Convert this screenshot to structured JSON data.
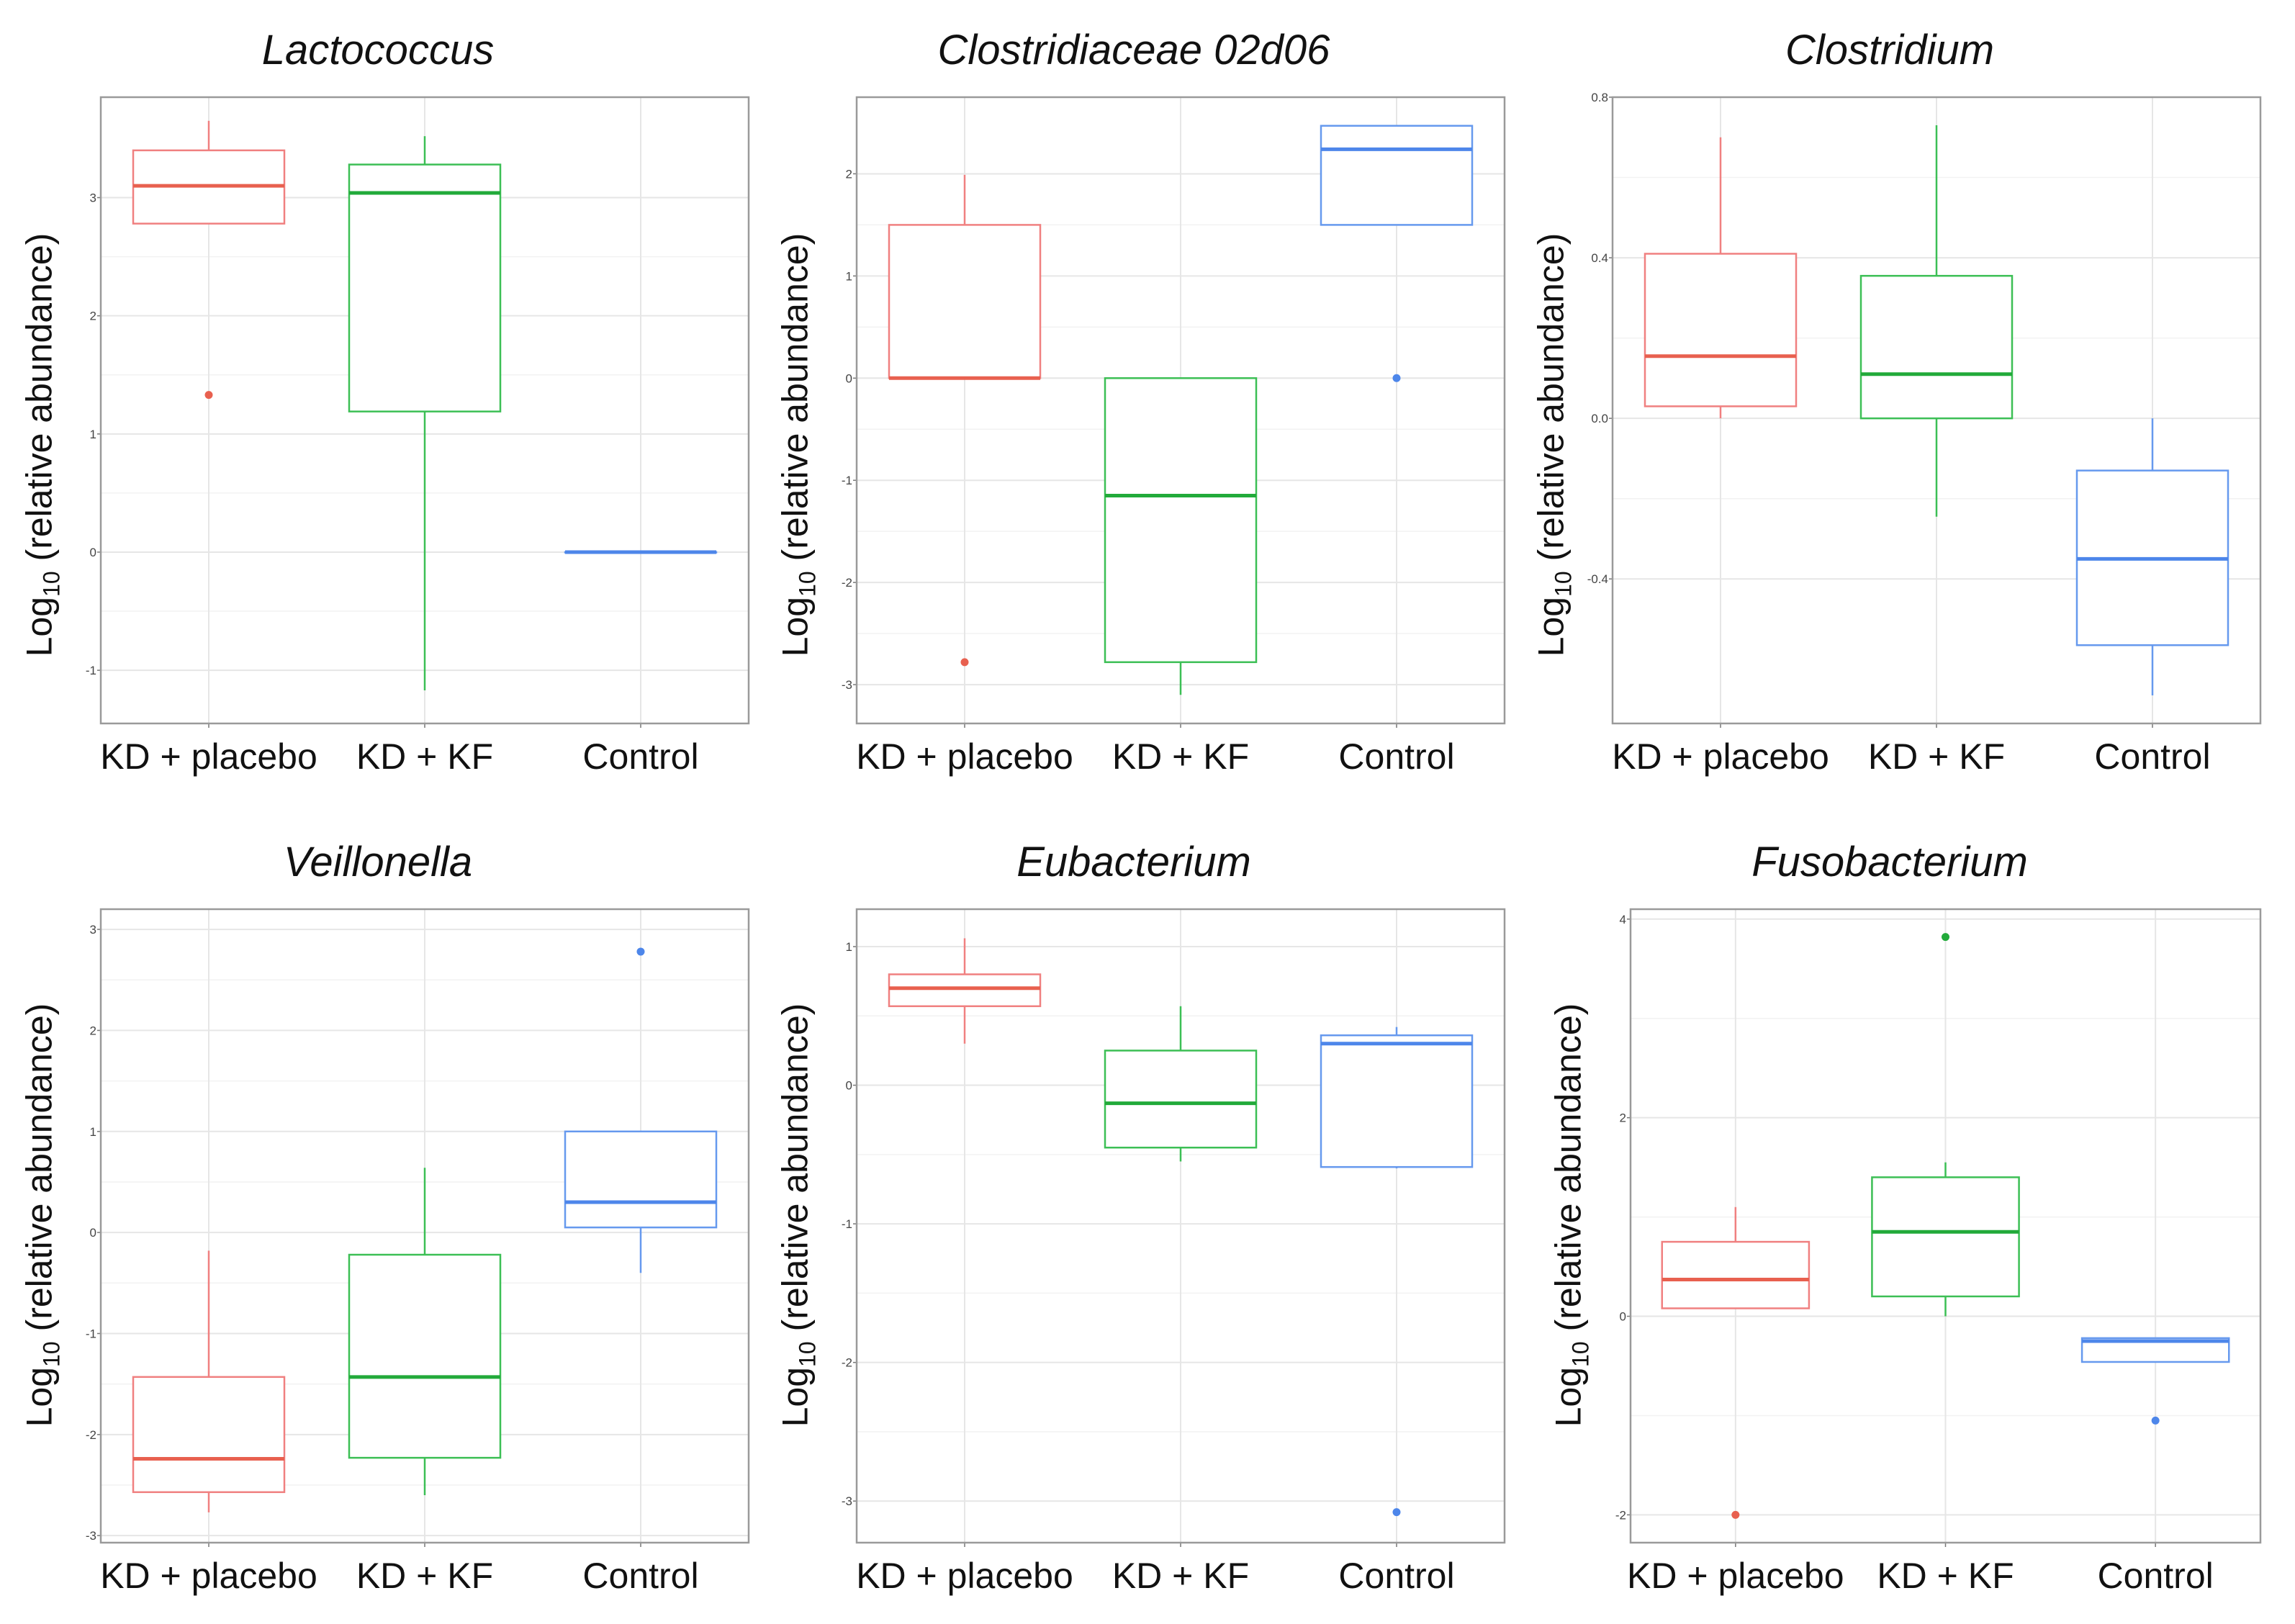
{
  "figure": {
    "ylabel_prefix": "Log",
    "ylabel_sub": "10",
    "ylabel_suffix": " (relative abundance)"
  },
  "colors": {
    "KD + placebo": "#f08080",
    "KD + KF": "#3cbf55",
    "Control": "#6699ee",
    "KD + placebo_median": "#e8604f",
    "KD + KF_median": "#22aa3a",
    "Control_median": "#4d86ea"
  },
  "chart_data": [
    {
      "type": "boxplot",
      "title": "Lactococcus",
      "categories": [
        "KD + placebo",
        "KD + KF",
        "Control"
      ],
      "ylim": [
        -1.45,
        3.85
      ],
      "yticks": [
        -1,
        0,
        1,
        2,
        3
      ],
      "ytick_labels": [
        "-1",
        "0",
        "1",
        "2",
        "3"
      ],
      "boxes": [
        {
          "group": "KD + placebo",
          "whisker_low": 2.78,
          "q1": 2.78,
          "median": 3.1,
          "q3": 3.4,
          "whisker_high": 3.65,
          "outliers": [
            1.33
          ]
        },
        {
          "group": "KD + KF",
          "whisker_low": -1.17,
          "q1": 1.19,
          "median": 3.04,
          "q3": 3.28,
          "whisker_high": 3.52,
          "outliers": []
        },
        {
          "group": "Control",
          "whisker_low": 0,
          "q1": 0,
          "median": 0,
          "q3": 0,
          "whisker_high": 0,
          "outliers": []
        }
      ]
    },
    {
      "type": "boxplot",
      "title": "Clostridiaceae 02d06",
      "categories": [
        "KD + placebo",
        "KD + KF",
        "Control"
      ],
      "ylim": [
        -3.38,
        2.75
      ],
      "yticks": [
        -3,
        -2,
        -1,
        0,
        1,
        2
      ],
      "ytick_labels": [
        "-3",
        "-2",
        "-1",
        "0",
        "1",
        "2"
      ],
      "boxes": [
        {
          "group": "KD + placebo",
          "whisker_low": 0,
          "q1": 0,
          "median": 0,
          "q3": 1.5,
          "whisker_high": 1.99,
          "outliers": [
            -2.78
          ]
        },
        {
          "group": "KD + KF",
          "whisker_low": -3.1,
          "q1": -2.78,
          "median": -1.15,
          "q3": 0,
          "whisker_high": 0,
          "outliers": []
        },
        {
          "group": "Control",
          "whisker_low": 1.5,
          "q1": 1.5,
          "median": 2.24,
          "q3": 2.47,
          "whisker_high": 2.47,
          "outliers": [
            0
          ]
        }
      ]
    },
    {
      "type": "boxplot",
      "title": "Clostridium",
      "categories": [
        "KD + placebo",
        "KD + KF",
        "Control"
      ],
      "ylim": [
        -0.76,
        0.8
      ],
      "yticks": [
        -0.4,
        0.0,
        0.4,
        0.8
      ],
      "ytick_labels": [
        "-0.4",
        "0.0",
        "0.4",
        "0.8"
      ],
      "boxes": [
        {
          "group": "KD + placebo",
          "whisker_low": 0.0,
          "q1": 0.03,
          "median": 0.155,
          "q3": 0.41,
          "whisker_high": 0.7,
          "outliers": []
        },
        {
          "group": "KD + KF",
          "whisker_low": -0.245,
          "q1": 0.0,
          "median": 0.11,
          "q3": 0.355,
          "whisker_high": 0.73,
          "outliers": []
        },
        {
          "group": "Control",
          "whisker_low": -0.69,
          "q1": -0.565,
          "median": -0.35,
          "q3": -0.13,
          "whisker_high": 0.0,
          "outliers": []
        }
      ]
    },
    {
      "type": "boxplot",
      "title": "Veillonella",
      "categories": [
        "KD + placebo",
        "KD + KF",
        "Control"
      ],
      "ylim": [
        -3.07,
        3.2
      ],
      "yticks": [
        -3,
        -2,
        -1,
        0,
        1,
        2,
        3
      ],
      "ytick_labels": [
        "-3",
        "-2",
        "-1",
        "0",
        "1",
        "2",
        "3"
      ],
      "boxes": [
        {
          "group": "KD + placebo",
          "whisker_low": -2.77,
          "q1": -2.57,
          "median": -2.24,
          "q3": -1.43,
          "whisker_high": -0.18,
          "outliers": []
        },
        {
          "group": "KD + KF",
          "whisker_low": -2.6,
          "q1": -2.23,
          "median": -1.43,
          "q3": -0.22,
          "whisker_high": 0.64,
          "outliers": []
        },
        {
          "group": "Control",
          "whisker_low": -0.4,
          "q1": 0.05,
          "median": 0.3,
          "q3": 1.0,
          "whisker_high": 1.0,
          "outliers": [
            2.78
          ]
        }
      ]
    },
    {
      "type": "boxplot",
      "title": "Eubacterium",
      "categories": [
        "KD + placebo",
        "KD + KF",
        "Control"
      ],
      "ylim": [
        -3.3,
        1.27
      ],
      "yticks": [
        -3,
        -2,
        -1,
        0,
        1
      ],
      "ytick_labels": [
        "-3",
        "-2",
        "-1",
        "0",
        "1"
      ],
      "boxes": [
        {
          "group": "KD + placebo",
          "whisker_low": 0.3,
          "q1": 0.57,
          "median": 0.7,
          "q3": 0.8,
          "whisker_high": 1.06,
          "outliers": []
        },
        {
          "group": "KD + KF",
          "whisker_low": -0.55,
          "q1": -0.45,
          "median": -0.13,
          "q3": 0.25,
          "whisker_high": 0.57,
          "outliers": []
        },
        {
          "group": "Control",
          "whisker_low": -0.6,
          "q1": -0.59,
          "median": 0.3,
          "q3": 0.36,
          "whisker_high": 0.42,
          "outliers": [
            -3.08
          ]
        }
      ]
    },
    {
      "type": "boxplot",
      "title": "Fusobacterium",
      "categories": [
        "KD + placebo",
        "KD + KF",
        "Control"
      ],
      "ylim": [
        -2.28,
        4.1
      ],
      "yticks": [
        -2,
        0,
        2,
        4
      ],
      "ytick_labels": [
        "-2",
        "0",
        "2",
        "4"
      ],
      "boxes": [
        {
          "group": "KD + placebo",
          "whisker_low": 0.08,
          "q1": 0.08,
          "median": 0.37,
          "q3": 0.75,
          "whisker_high": 1.1,
          "outliers": [
            -2.0
          ]
        },
        {
          "group": "KD + KF",
          "whisker_low": 0.0,
          "q1": 0.2,
          "median": 0.85,
          "q3": 1.4,
          "whisker_high": 1.55,
          "outliers": [
            3.82
          ]
        },
        {
          "group": "Control",
          "whisker_low": -0.46,
          "q1": -0.46,
          "median": -0.25,
          "q3": -0.22,
          "whisker_high": -0.22,
          "outliers": [
            -1.05
          ]
        }
      ]
    }
  ]
}
